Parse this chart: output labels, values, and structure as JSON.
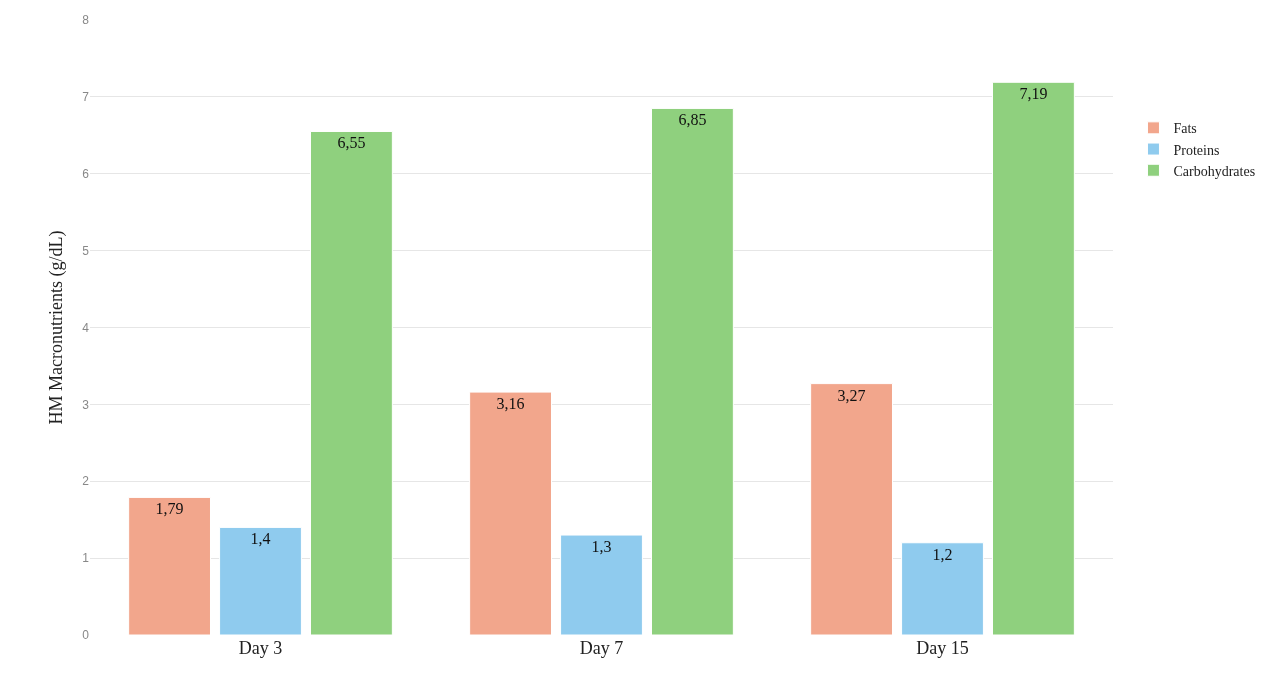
{
  "chart_data": {
    "type": "bar",
    "ylabel": "HM Macronutrients (g/dL)",
    "categories": [
      "Day 3",
      "Day 7",
      "Day 15"
    ],
    "series": [
      {
        "name": "Fats",
        "color": "#f2a68c",
        "values": [
          1.79,
          3.16,
          3.27
        ],
        "value_labels": [
          "1,79",
          "3,16",
          "3,27"
        ]
      },
      {
        "name": "Proteins",
        "color": "#8fcbee",
        "values": [
          1.4,
          1.3,
          1.2
        ],
        "value_labels": [
          "1,4",
          "1,3",
          "1,2"
        ]
      },
      {
        "name": "Carbohydrates",
        "color": "#8fd07e",
        "values": [
          6.55,
          6.85,
          7.19
        ],
        "value_labels": [
          "6,55",
          "6,85",
          "7,19"
        ]
      }
    ],
    "ylim": [
      0,
      8
    ],
    "yticks": [
      0,
      1,
      2,
      3,
      4,
      5,
      6,
      7,
      8
    ],
    "grid": "y",
    "legend": "top right"
  }
}
